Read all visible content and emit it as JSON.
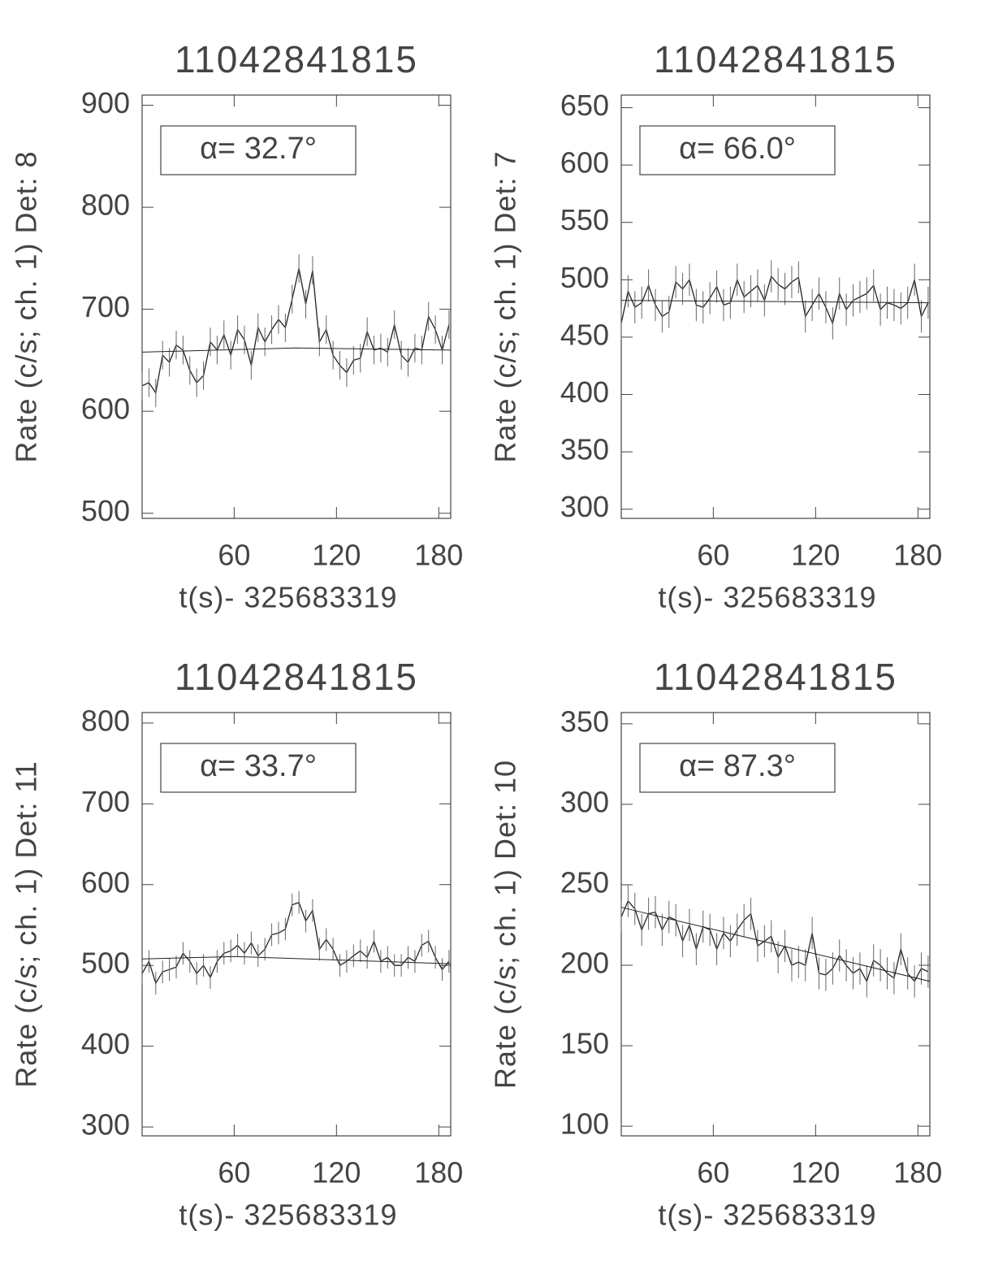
{
  "chart_data": [
    {
      "type": "line",
      "title": "11042841815",
      "xlabel": "t(s)- 325683319",
      "ylabel": "Rate (c/s; ch. 1) Det: 8",
      "annotation": "α= 32.7°",
      "xlim": [
        6,
        187
      ],
      "xticks": [
        60,
        120,
        180
      ],
      "ylim": [
        495,
        910
      ],
      "yticks": [
        500,
        600,
        700,
        800,
        900
      ],
      "color": "#222",
      "series": [
        {
          "x": [
            6,
            10,
            14,
            18,
            22,
            26,
            30,
            34,
            38,
            42,
            46,
            50,
            54,
            58,
            62,
            66,
            70,
            74,
            78,
            82,
            86,
            90,
            94,
            98,
            102,
            106,
            110,
            114,
            118,
            122,
            126,
            130,
            134,
            138,
            142,
            146,
            150,
            154,
            158,
            162,
            166,
            170,
            174,
            178,
            182,
            186
          ],
          "values": [
            625,
            628,
            618,
            655,
            648,
            665,
            660,
            640,
            628,
            635,
            668,
            660,
            675,
            655,
            680,
            670,
            645,
            682,
            668,
            680,
            690,
            682,
            710,
            740,
            705,
            738,
            668,
            680,
            655,
            645,
            638,
            650,
            652,
            678,
            660,
            662,
            658,
            685,
            655,
            648,
            662,
            660,
            693,
            680,
            660,
            685
          ],
          "error": 14
        },
        {
          "x": [
            6,
            96,
            187
          ],
          "values": [
            658,
            662,
            660
          ]
        }
      ]
    },
    {
      "type": "line",
      "title": "11042841815",
      "xlabel": "t(s)- 325683319",
      "ylabel": "Rate (c/s; ch. 1) Det: 7",
      "annotation": "α= 66.0°",
      "xlim": [
        6,
        187
      ],
      "xticks": [
        60,
        120,
        180
      ],
      "ylim": [
        292,
        661
      ],
      "yticks": [
        300,
        350,
        400,
        450,
        500,
        550,
        600,
        650
      ],
      "color": "#222",
      "series": [
        {
          "x": [
            6,
            10,
            14,
            18,
            22,
            26,
            30,
            34,
            38,
            42,
            46,
            50,
            54,
            58,
            62,
            66,
            70,
            74,
            78,
            82,
            86,
            90,
            94,
            98,
            102,
            106,
            110,
            114,
            118,
            122,
            126,
            130,
            134,
            138,
            142,
            146,
            150,
            154,
            158,
            162,
            166,
            170,
            174,
            178,
            182,
            186
          ],
          "values": [
            462,
            490,
            476,
            480,
            495,
            478,
            468,
            472,
            498,
            492,
            500,
            478,
            476,
            484,
            494,
            478,
            480,
            500,
            485,
            490,
            495,
            482,
            503,
            496,
            492,
            498,
            502,
            468,
            478,
            488,
            476,
            462,
            488,
            474,
            482,
            485,
            488,
            495,
            474,
            480,
            478,
            475,
            480,
            500,
            468,
            480
          ],
          "error": 14
        },
        {
          "x": [
            6,
            187
          ],
          "values": [
            482,
            480
          ]
        }
      ]
    },
    {
      "type": "line",
      "title": "11042841815",
      "xlabel": "t(s)- 325683319",
      "ylabel": "Rate (c/s; ch. 1) Det: 11",
      "annotation": "α= 33.7°",
      "xlim": [
        6,
        187
      ],
      "xticks": [
        60,
        120,
        180
      ],
      "ylim": [
        289,
        813
      ],
      "yticks": [
        300,
        400,
        500,
        600,
        700,
        800
      ],
      "color": "#222",
      "series": [
        {
          "x": [
            6,
            10,
            14,
            18,
            22,
            26,
            30,
            34,
            38,
            42,
            46,
            50,
            54,
            58,
            62,
            66,
            70,
            74,
            78,
            82,
            86,
            90,
            94,
            98,
            102,
            106,
            110,
            114,
            118,
            122,
            126,
            130,
            134,
            138,
            142,
            146,
            150,
            154,
            158,
            162,
            166,
            170,
            174,
            178,
            182,
            186
          ],
          "values": [
            490,
            505,
            478,
            492,
            495,
            498,
            515,
            505,
            490,
            500,
            485,
            505,
            515,
            518,
            525,
            515,
            528,
            512,
            520,
            538,
            540,
            545,
            575,
            578,
            555,
            568,
            520,
            532,
            520,
            500,
            505,
            512,
            518,
            510,
            530,
            505,
            510,
            500,
            500,
            510,
            505,
            525,
            530,
            510,
            495,
            505
          ],
          "error": 14
        },
        {
          "x": [
            6,
            60,
            187
          ],
          "values": [
            508,
            511,
            502
          ]
        }
      ]
    },
    {
      "type": "line",
      "title": "11042841815",
      "xlabel": "t(s)- 325683319",
      "ylabel": "Rate (c/s; ch. 1) Det: 10",
      "annotation": "α= 87.3°",
      "xlim": [
        6,
        187
      ],
      "xticks": [
        60,
        120,
        180
      ],
      "ylim": [
        94,
        357
      ],
      "yticks": [
        100,
        150,
        200,
        250,
        300,
        350
      ],
      "color": "#222",
      "series": [
        {
          "x": [
            6,
            10,
            14,
            18,
            22,
            26,
            30,
            34,
            38,
            42,
            46,
            50,
            54,
            58,
            62,
            66,
            70,
            74,
            78,
            82,
            86,
            90,
            94,
            98,
            102,
            106,
            110,
            114,
            118,
            122,
            126,
            130,
            134,
            138,
            142,
            146,
            150,
            154,
            158,
            162,
            166,
            170,
            174,
            178,
            182,
            186
          ],
          "values": [
            230,
            240,
            235,
            222,
            232,
            233,
            222,
            230,
            228,
            215,
            225,
            210,
            224,
            222,
            210,
            220,
            215,
            222,
            228,
            232,
            212,
            215,
            218,
            205,
            212,
            200,
            202,
            200,
            220,
            195,
            194,
            198,
            206,
            200,
            195,
            198,
            190,
            203,
            200,
            195,
            192,
            210,
            195,
            190,
            198,
            196
          ],
          "error": 10
        },
        {
          "x": [
            6,
            187
          ],
          "values": [
            236,
            190
          ]
        }
      ]
    }
  ]
}
